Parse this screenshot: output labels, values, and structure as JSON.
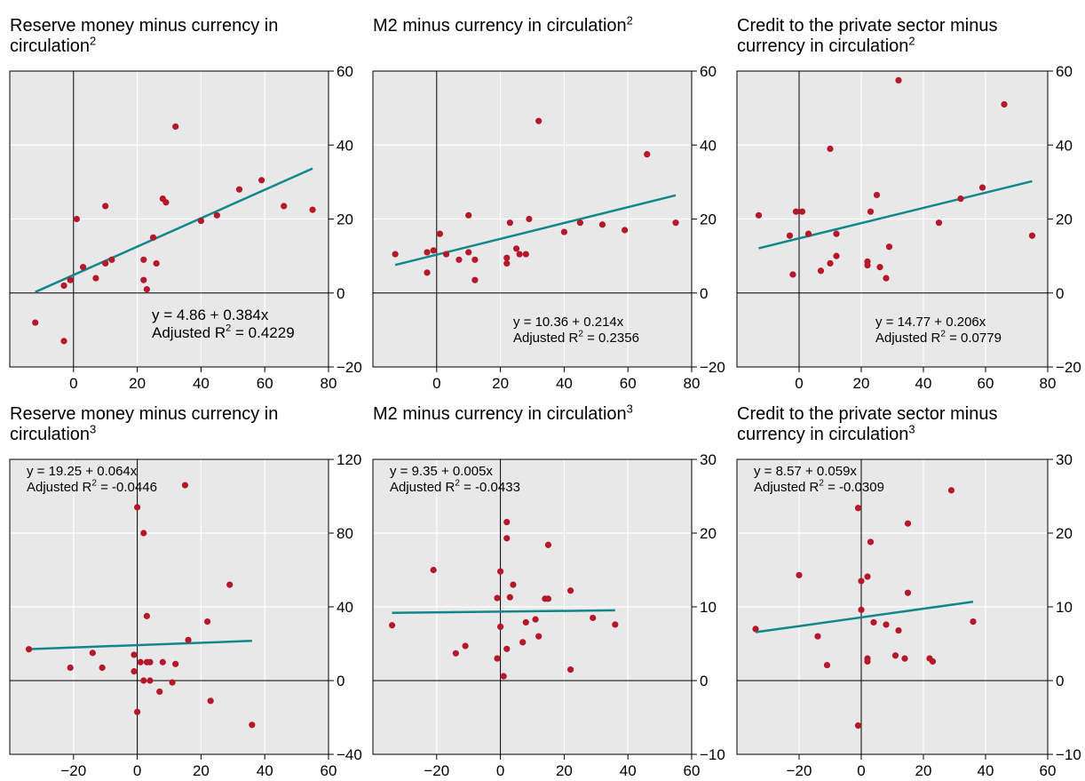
{
  "chart_data": [
    {
      "type": "scatter",
      "title": "Reserve money minus currency in circulation",
      "title_sup": "2",
      "xlim": [
        -20,
        80
      ],
      "ylim": [
        -20,
        60
      ],
      "xticks": [
        0,
        20,
        40,
        60,
        80
      ],
      "yticks": [
        -20,
        0,
        20,
        40,
        60
      ],
      "points": [
        [
          -12,
          -8
        ],
        [
          -3,
          -13
        ],
        [
          -3,
          2
        ],
        [
          -1,
          3.5
        ],
        [
          1,
          20
        ],
        [
          3,
          7
        ],
        [
          7,
          4
        ],
        [
          10,
          8
        ],
        [
          10,
          23.5
        ],
        [
          12,
          9
        ],
        [
          22,
          9
        ],
        [
          22,
          3.5
        ],
        [
          23,
          1
        ],
        [
          25,
          15
        ],
        [
          26,
          8
        ],
        [
          28,
          25.5
        ],
        [
          29,
          24.5
        ],
        [
          32,
          45
        ],
        [
          40,
          19.5
        ],
        [
          45,
          21
        ],
        [
          52,
          28
        ],
        [
          59,
          30.5
        ],
        [
          66,
          23.5
        ],
        [
          75,
          22.5
        ]
      ],
      "trend": {
        "intercept": 4.86,
        "slope": 0.384,
        "x_range": [
          -12,
          75
        ]
      },
      "annotation": {
        "equation": "y = 4.86 + 0.384x",
        "r2_prefix": "Adjusted R",
        "r2_value": " = 0.4229",
        "position": "bottom-right"
      },
      "grid": true
    },
    {
      "type": "scatter",
      "title": "M2 minus currency in circulation",
      "title_sup": "2",
      "xlim": [
        -20,
        80
      ],
      "ylim": [
        -20,
        60
      ],
      "xticks": [
        0,
        20,
        40,
        60,
        80
      ],
      "yticks": [
        -20,
        0,
        20,
        40,
        60
      ],
      "points": [
        [
          -13,
          10.5
        ],
        [
          -3,
          11
        ],
        [
          -3,
          5.5
        ],
        [
          -1,
          11.5
        ],
        [
          1,
          16
        ],
        [
          3,
          10.5
        ],
        [
          7,
          9
        ],
        [
          10,
          21
        ],
        [
          10,
          11
        ],
        [
          12,
          9
        ],
        [
          12,
          3.5
        ],
        [
          22,
          9.5
        ],
        [
          22,
          8
        ],
        [
          23,
          19
        ],
        [
          25,
          12
        ],
        [
          26,
          10.5
        ],
        [
          28,
          10.5
        ],
        [
          29,
          20
        ],
        [
          32,
          46.5
        ],
        [
          40,
          16.5
        ],
        [
          45,
          19
        ],
        [
          52,
          18.5
        ],
        [
          59,
          17
        ],
        [
          66,
          37.5
        ],
        [
          75,
          19
        ]
      ],
      "trend": {
        "intercept": 10.36,
        "slope": 0.214,
        "x_range": [
          -13,
          75
        ]
      },
      "annotation": {
        "equation": "y = 10.36 + 0.214x",
        "r2_prefix": "Adjusted R",
        "r2_value": " = 0.2356",
        "position": "bottom-right"
      },
      "grid": true
    },
    {
      "type": "scatter",
      "title": "Credit to the private sector minus currency in circulation",
      "title_lines": [
        "Credit to the private sector minus",
        "currency in circulation"
      ],
      "title_sup": "2",
      "xlim": [
        -20,
        80
      ],
      "ylim": [
        -20,
        60
      ],
      "xticks": [
        0,
        20,
        40,
        60,
        80
      ],
      "yticks": [
        -20,
        0,
        20,
        40,
        60
      ],
      "points": [
        [
          -13,
          21
        ],
        [
          -3,
          15.5
        ],
        [
          -2,
          5
        ],
        [
          -1,
          22
        ],
        [
          1,
          22
        ],
        [
          3,
          16
        ],
        [
          7,
          6
        ],
        [
          10,
          8
        ],
        [
          10,
          39
        ],
        [
          12,
          10
        ],
        [
          12,
          16
        ],
        [
          22,
          8.5
        ],
        [
          22,
          7.5
        ],
        [
          23,
          22
        ],
        [
          25,
          26.5
        ],
        [
          26,
          7
        ],
        [
          28,
          4
        ],
        [
          29,
          12.5
        ],
        [
          32,
          57.5
        ],
        [
          45,
          19
        ],
        [
          52,
          25.5
        ],
        [
          59,
          28.5
        ],
        [
          66,
          51
        ],
        [
          75,
          15.5
        ]
      ],
      "trend": {
        "intercept": 14.77,
        "slope": 0.206,
        "x_range": [
          -13,
          75
        ]
      },
      "annotation": {
        "equation": "y = 14.77 + 0.206x",
        "r2_prefix": "Adjusted R",
        "r2_value": " =  0.0779",
        "position": "bottom-right"
      },
      "grid": true
    },
    {
      "type": "scatter",
      "title": "Reserve money minus currency in circulation",
      "title_sup": "3",
      "xlim": [
        -40,
        60
      ],
      "ylim": [
        -40,
        120
      ],
      "xticks": [
        -20,
        0,
        20,
        40,
        60
      ],
      "yticks": [
        -40,
        0,
        40,
        80,
        120
      ],
      "points": [
        [
          -34,
          17
        ],
        [
          -21,
          7
        ],
        [
          -14,
          15
        ],
        [
          -11,
          7
        ],
        [
          -1,
          14
        ],
        [
          -1,
          5
        ],
        [
          0,
          -17
        ],
        [
          0,
          94
        ],
        [
          1,
          10
        ],
        [
          2,
          80
        ],
        [
          2,
          0
        ],
        [
          3,
          35
        ],
        [
          3,
          10
        ],
        [
          4,
          10
        ],
        [
          4,
          0
        ],
        [
          7,
          -6
        ],
        [
          8,
          10
        ],
        [
          11,
          -1
        ],
        [
          12,
          9
        ],
        [
          15,
          106
        ],
        [
          16,
          22
        ],
        [
          22,
          32
        ],
        [
          23,
          -11
        ],
        [
          29,
          52
        ],
        [
          36,
          -24
        ]
      ],
      "trend": {
        "intercept": 19.25,
        "slope": 0.064,
        "x_range": [
          -34,
          36
        ]
      },
      "annotation": {
        "equation": "y = 19.25 + 0.064x",
        "r2_prefix": "Adjusted R",
        "r2_value": " = -0.0446",
        "position": "top-left"
      },
      "grid": true
    },
    {
      "type": "scatter",
      "title": "M2 minus currency in circulation",
      "title_sup": "3",
      "xlim": [
        -40,
        60
      ],
      "ylim": [
        -10,
        30
      ],
      "xticks": [
        -20,
        0,
        20,
        40,
        60
      ],
      "yticks": [
        -10,
        0,
        10,
        20,
        30
      ],
      "points": [
        [
          -34,
          7.5
        ],
        [
          -21,
          15
        ],
        [
          -14,
          3.7
        ],
        [
          -11,
          4.7
        ],
        [
          -1,
          11.2
        ],
        [
          -1,
          3
        ],
        [
          0,
          7.3
        ],
        [
          0,
          14.8
        ],
        [
          1,
          0.6
        ],
        [
          2,
          19.3
        ],
        [
          2,
          21.5
        ],
        [
          2,
          4.3
        ],
        [
          3,
          11.3
        ],
        [
          4,
          13
        ],
        [
          7,
          5.2
        ],
        [
          8,
          7.9
        ],
        [
          11,
          8.3
        ],
        [
          12,
          6
        ],
        [
          14,
          11.1
        ],
        [
          15,
          11.1
        ],
        [
          15,
          18.4
        ],
        [
          22,
          12.2
        ],
        [
          22,
          1.5
        ],
        [
          29,
          8.5
        ],
        [
          36,
          7.6
        ]
      ],
      "trend": {
        "intercept": 9.35,
        "slope": 0.005,
        "x_range": [
          -34,
          36
        ]
      },
      "annotation": {
        "equation": "y = 9.35 + 0.005x",
        "r2_prefix": "Adjusted R",
        "r2_value": " =  -0.0433",
        "position": "top-left"
      },
      "grid": true
    },
    {
      "type": "scatter",
      "title": "Credit to the private sector minus currency in circulation",
      "title_lines": [
        "Credit to the private sector minus",
        "currency in circulation"
      ],
      "title_sup": "3",
      "xlim": [
        -40,
        60
      ],
      "ylim": [
        -10,
        30
      ],
      "xticks": [
        -20,
        0,
        20,
        40,
        60
      ],
      "yticks": [
        -10,
        0,
        10,
        20,
        30
      ],
      "points": [
        [
          -34,
          7
        ],
        [
          -20,
          14.3
        ],
        [
          -14,
          6
        ],
        [
          -11,
          2.1
        ],
        [
          -1,
          23.4
        ],
        [
          -1,
          -6.1
        ],
        [
          0,
          9.6
        ],
        [
          0,
          13.5
        ],
        [
          2,
          2.6
        ],
        [
          2,
          3
        ],
        [
          2,
          14.1
        ],
        [
          3,
          18.8
        ],
        [
          4,
          7.9
        ],
        [
          8,
          7.6
        ],
        [
          11,
          3.4
        ],
        [
          12,
          6.8
        ],
        [
          14,
          3
        ],
        [
          15,
          11.9
        ],
        [
          15,
          21.3
        ],
        [
          22,
          3
        ],
        [
          23,
          2.6
        ],
        [
          29,
          25.8
        ],
        [
          36,
          8
        ]
      ],
      "trend": {
        "intercept": 8.57,
        "slope": 0.059,
        "x_range": [
          -34,
          36
        ]
      },
      "annotation": {
        "equation": "y = 8.57 + 0.059x",
        "r2_prefix": "Adjusted R",
        "r2_value": " =  -0.0309",
        "position": "top-left"
      },
      "grid": true
    }
  ],
  "colors": {
    "plot_background": "#e8e8e8",
    "gridline": "#ffffff",
    "point": "#b5182b",
    "trend_line": "#12878a",
    "axis": "#000000"
  }
}
